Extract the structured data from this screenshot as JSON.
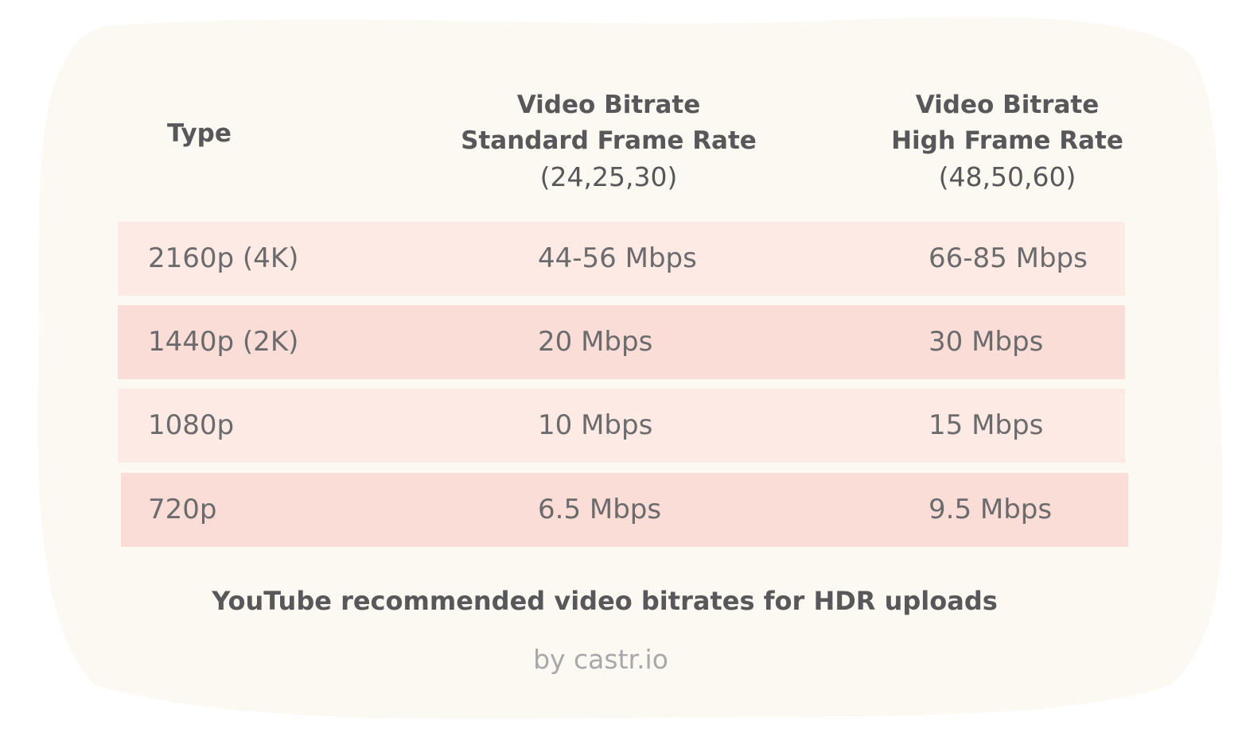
{
  "colors": {
    "page_background": "#ffffff",
    "card_background": "#fcf8f2",
    "row_light": "#fdeae4",
    "row_dark": "#fbddd7",
    "header_text": "#58585a",
    "cell_text": "#6b6b6d",
    "credit_text": "#a8a8aa"
  },
  "chart_data": {
    "type": "table",
    "title": "YouTube recommended video bitrates for HDR uploads",
    "credit": "by castr.io",
    "columns": [
      {
        "title": "Type",
        "subtitle": ""
      },
      {
        "title_line1": "Video Bitrate",
        "title_line2": "Standard Frame Rate",
        "subtitle": "(24,25,30)"
      },
      {
        "title_line1": "Video Bitrate",
        "title_line2": "High Frame Rate",
        "subtitle": "(48,50,60)"
      }
    ],
    "rows": [
      [
        "2160p (4K)",
        "44-56 Mbps",
        "66-85 Mbps"
      ],
      [
        "1440p (2K)",
        "20 Mbps",
        "30 Mbps"
      ],
      [
        "1080p",
        "10 Mbps",
        "15 Mbps"
      ],
      [
        "720p",
        "6.5 Mbps",
        "9.5 Mbps"
      ]
    ]
  }
}
